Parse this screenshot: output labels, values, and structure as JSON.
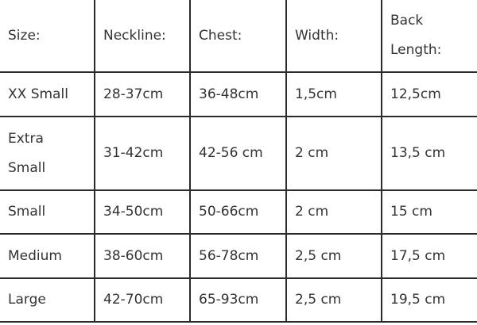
{
  "table": {
    "headers": [
      "Size:",
      "Neckline:",
      "Chest:",
      "Width:",
      "Back Length:"
    ],
    "rows": [
      [
        "XX Small",
        "28-37cm",
        "36-48cm",
        "1,5cm",
        "12,5cm"
      ],
      [
        "Extra Small",
        "31-42cm",
        "42-56 cm",
        "2 cm",
        "13,5 cm"
      ],
      [
        "Small",
        "34-50cm",
        "50-66cm",
        "2 cm",
        "15 cm"
      ],
      [
        "Medium",
        "38-60cm",
        "56-78cm",
        "2,5 cm",
        "17,5 cm"
      ],
      [
        "Large",
        "42-70cm",
        "65-93cm",
        "2,5 cm",
        "19,5 cm"
      ]
    ]
  }
}
